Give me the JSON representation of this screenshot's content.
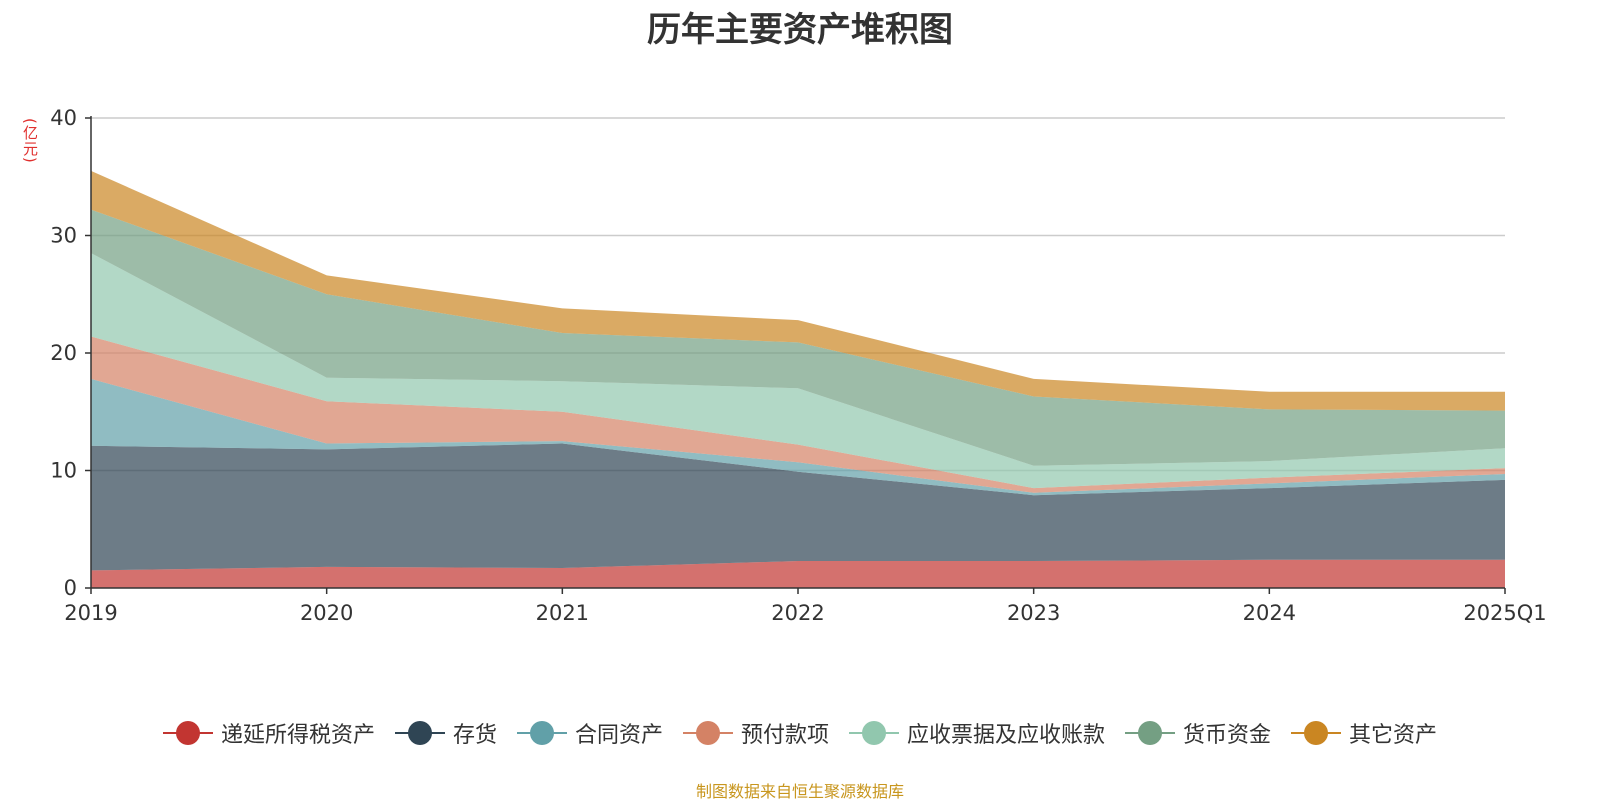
{
  "chart_data": {
    "type": "area",
    "stacked": true,
    "title": "历年主要资产堆积图",
    "ylabel": "(亿元)",
    "ylim": [
      0,
      40
    ],
    "yticks": [
      0,
      10,
      20,
      30,
      40
    ],
    "categories": [
      "2019",
      "2020",
      "2021",
      "2022",
      "2023",
      "2024",
      "2025Q1"
    ],
    "grid": true,
    "legend_position": "bottom",
    "series": [
      {
        "name": "递延所得税资产",
        "color": "#c23531",
        "values": [
          1.5,
          1.8,
          1.7,
          2.3,
          2.3,
          2.4,
          2.4
        ]
      },
      {
        "name": "存货",
        "color": "#2f4554",
        "values": [
          10.6,
          10.0,
          10.6,
          7.6,
          5.6,
          6.1,
          6.8
        ]
      },
      {
        "name": "合同资产",
        "color": "#61a0a8",
        "values": [
          5.7,
          0.5,
          0.2,
          0.8,
          0.2,
          0.4,
          0.5
        ]
      },
      {
        "name": "预付款项",
        "color": "#d48265",
        "values": [
          3.6,
          3.6,
          2.5,
          1.5,
          0.4,
          0.5,
          0.5
        ]
      },
      {
        "name": "应收票据及应收账款",
        "color": "#91c7ae",
        "values": [
          7.1,
          2.0,
          2.6,
          4.8,
          1.9,
          1.4,
          1.7
        ]
      },
      {
        "name": "货币资金",
        "color": "#749f83",
        "values": [
          3.7,
          7.1,
          4.1,
          3.9,
          5.9,
          4.4,
          3.2
        ]
      },
      {
        "name": "其它资产",
        "color": "#ca8622",
        "values": [
          3.3,
          1.6,
          2.1,
          1.9,
          1.5,
          1.5,
          1.6
        ]
      }
    ]
  },
  "source_text": "制图数据来自恒生聚源数据库"
}
